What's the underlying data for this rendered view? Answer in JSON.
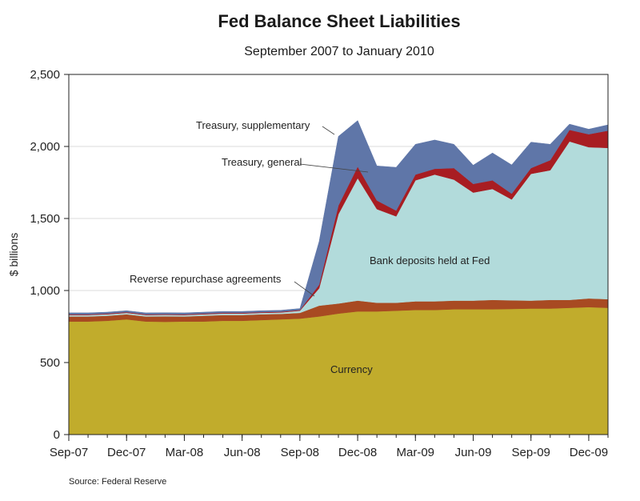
{
  "chart_data": {
    "type": "area",
    "stacked": true,
    "title": "Fed Balance Sheet Liabilities",
    "subtitle": "September 2007 to January 2010",
    "ylabel": "$ billions",
    "xlabel": "",
    "ylim": [
      0,
      2500
    ],
    "yticks": [
      0,
      500,
      1000,
      1500,
      2000,
      2500
    ],
    "ytick_labels": [
      "0",
      "500",
      "1,000",
      "1,500",
      "2,000",
      "2,500"
    ],
    "xtick_labels": [
      "Sep-07",
      "Dec-07",
      "Mar-08",
      "Jun-08",
      "Sep-08",
      "Dec-08",
      "Mar-09",
      "Jun-09",
      "Sep-09",
      "Dec-09"
    ],
    "grid": true,
    "source": "Source: Federal Reserve",
    "x": [
      "Sep-07",
      "Oct-07",
      "Nov-07",
      "Dec-07",
      "Jan-08",
      "Feb-08",
      "Mar-08",
      "Apr-08",
      "May-08",
      "Jun-08",
      "Jul-08",
      "Aug-08",
      "Sep-08",
      "Oct-08",
      "Nov-08",
      "Dec-08",
      "Jan-09",
      "Feb-09",
      "Mar-09",
      "Apr-09",
      "May-09",
      "Jun-09",
      "Jul-09",
      "Aug-09",
      "Sep-09",
      "Oct-09",
      "Nov-09",
      "Dec-09",
      "Jan-10"
    ],
    "series": [
      {
        "name": "Currency",
        "color": "#c1ac2c",
        "values": [
          785,
          785,
          790,
          800,
          785,
          783,
          785,
          785,
          790,
          790,
          795,
          800,
          805,
          820,
          840,
          855,
          855,
          860,
          865,
          865,
          870,
          870,
          870,
          872,
          875,
          875,
          880,
          885,
          880
        ]
      },
      {
        "name": "Reverse repurchase agreements",
        "color": "#a84a22",
        "values": [
          35,
          35,
          35,
          35,
          35,
          38,
          35,
          40,
          40,
          40,
          40,
          38,
          40,
          75,
          70,
          75,
          60,
          55,
          60,
          60,
          60,
          60,
          65,
          60,
          55,
          60,
          55,
          60,
          60
        ]
      },
      {
        "name": "Bank deposits held at Fed",
        "color": "#b2dbdb",
        "values": [
          10,
          10,
          10,
          10,
          10,
          10,
          10,
          10,
          10,
          10,
          10,
          10,
          15,
          120,
          620,
          850,
          650,
          600,
          840,
          880,
          840,
          750,
          770,
          700,
          880,
          900,
          1100,
          1050,
          1050
        ]
      },
      {
        "name": "Treasury, general",
        "color": "#a81d22",
        "values": [
          5,
          5,
          5,
          5,
          5,
          5,
          5,
          5,
          5,
          5,
          5,
          5,
          5,
          25,
          60,
          80,
          60,
          40,
          40,
          40,
          80,
          60,
          60,
          40,
          40,
          70,
          80,
          90,
          120
        ]
      },
      {
        "name": "Treasury, supplementary",
        "color": "#5f76a8",
        "values": [
          10,
          10,
          10,
          10,
          10,
          10,
          10,
          10,
          10,
          10,
          10,
          10,
          10,
          300,
          480,
          320,
          240,
          300,
          210,
          200,
          165,
          130,
          190,
          200,
          180,
          110,
          40,
          35,
          40
        ]
      }
    ],
    "annotations": [
      "Treasury, supplementary",
      "Treasury, general",
      "Reverse repurchase agreements",
      "Bank deposits held at Fed",
      "Currency"
    ]
  }
}
